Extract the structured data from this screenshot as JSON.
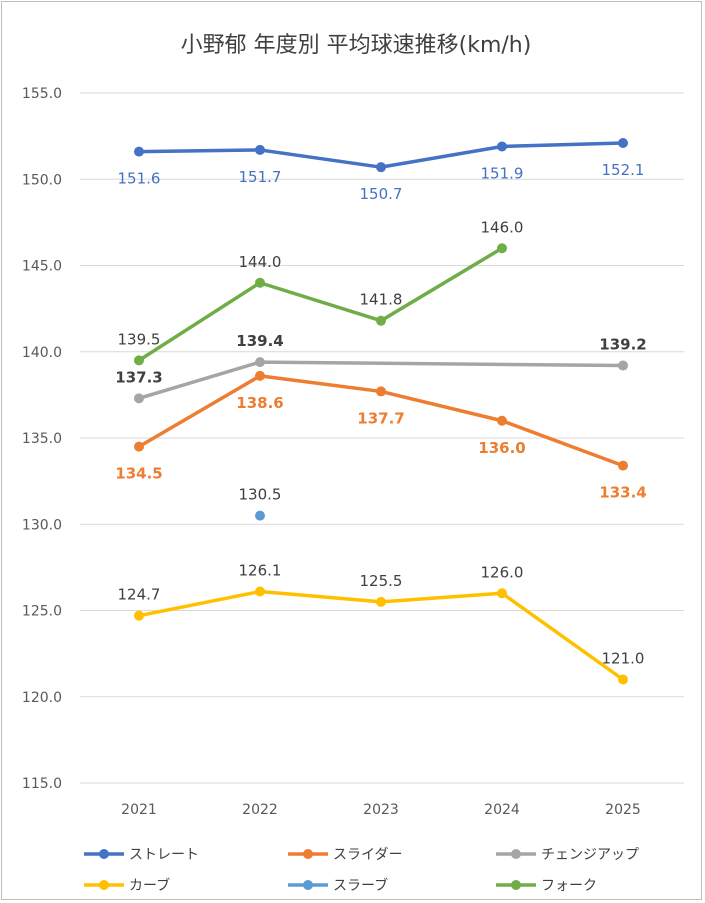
{
  "chart_data": {
    "type": "line",
    "title": "小野郁 年度別 平均球速推移(km/h)",
    "categories": [
      "2021",
      "2022",
      "2023",
      "2024",
      "2025"
    ],
    "ylim": [
      115.0,
      155.0
    ],
    "yticks": [
      "115.0",
      "120.0",
      "125.0",
      "130.0",
      "135.0",
      "140.0",
      "145.0",
      "150.0",
      "155.0"
    ],
    "grid": true,
    "legend_position": "bottom",
    "series": [
      {
        "name": "ストレート",
        "color": "#4472C4",
        "values": [
          151.6,
          151.7,
          150.7,
          151.9,
          152.1
        ],
        "labels": [
          "151.6",
          "151.7",
          "150.7",
          "151.9",
          "152.1"
        ],
        "label_color": "#4472C4",
        "label_position": "below",
        "label_bold": false
      },
      {
        "name": "スライダー",
        "color": "#ED7D31",
        "values": [
          134.5,
          138.6,
          137.7,
          136.0,
          133.4
        ],
        "labels": [
          "134.5",
          "138.6",
          "137.7",
          "136.0",
          "133.4"
        ],
        "label_color": "#ED7D31",
        "label_position": "below",
        "label_bold": true
      },
      {
        "name": "チェンジアップ",
        "color": "#A5A5A5",
        "values": [
          137.3,
          139.4,
          null,
          null,
          139.2
        ],
        "labels": [
          "137.3",
          "139.4",
          "",
          "",
          "139.2"
        ],
        "label_color": "#404040",
        "label_position": "above",
        "label_bold": true
      },
      {
        "name": "カーブ",
        "color": "#FFC000",
        "values": [
          124.7,
          126.1,
          125.5,
          126.0,
          121.0
        ],
        "labels": [
          "124.7",
          "126.1",
          "125.5",
          "126.0",
          "121.0"
        ],
        "label_color": "#404040",
        "label_position": "above",
        "label_bold": false
      },
      {
        "name": "スラーブ",
        "color": "#5B9BD5",
        "values": [
          null,
          130.5,
          null,
          null,
          null
        ],
        "labels": [
          "",
          "130.5",
          "",
          "",
          ""
        ],
        "label_color": "#404040",
        "label_position": "above",
        "label_bold": false
      },
      {
        "name": "フォーク",
        "color": "#70AD47",
        "values": [
          139.5,
          144.0,
          141.8,
          146.0,
          null
        ],
        "labels": [
          "139.5",
          "144.0",
          "141.8",
          "146.0",
          ""
        ],
        "label_color": "#404040",
        "label_position": "above",
        "label_bold": false
      }
    ]
  }
}
